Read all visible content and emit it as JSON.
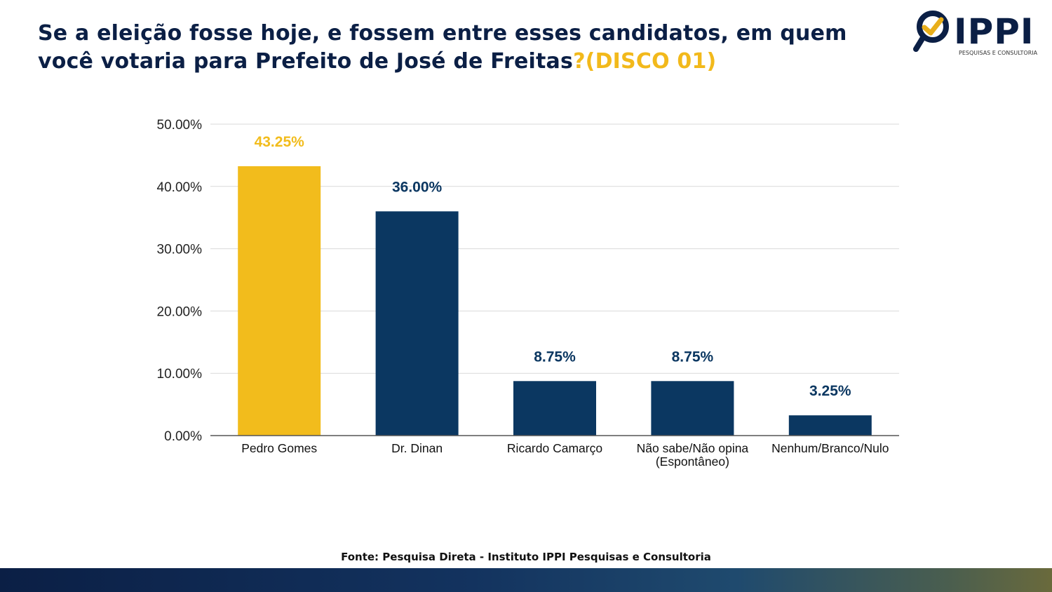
{
  "header": {
    "title_main": "Se a eleição fosse hoje, e fossem entre esses candidatos, em quem você votaria para Prefeito de José de Freitas",
    "title_accent": "?(DISCO 01)"
  },
  "logo": {
    "brand": "IPPI",
    "tagline": "PESQUISAS E CONSULTORIA",
    "icon": "magnifier-check-icon"
  },
  "footer": {
    "source": "Fonte: Pesquisa Direta - Instituto IPPI Pesquisas e Consultoria"
  },
  "colors": {
    "primary": "#0b3761",
    "accent": "#f2bc1c",
    "title": "#0b1f45"
  },
  "chart_data": {
    "type": "bar",
    "title": "Se a eleição fosse hoje, e fossem entre esses candidatos, em quem você votaria para Prefeito de José de Freitas?(DISCO 01)",
    "categories": [
      "Pedro Gomes",
      "Dr. Dinan",
      "Ricardo Camarço",
      "Não sabe/Não opina (Espontâneo)",
      "Nenhum/Branco/Nulo"
    ],
    "category_lines": [
      [
        "Pedro Gomes"
      ],
      [
        "Dr. Dinan"
      ],
      [
        "Ricardo Camarço"
      ],
      [
        "Não sabe/Não opina",
        "(Espontâneo)"
      ],
      [
        "Nenhum/Branco/Nulo"
      ]
    ],
    "values": [
      43.25,
      36.0,
      8.75,
      8.75,
      3.25
    ],
    "data_labels": [
      "43.25%",
      "36.00%",
      "8.75%",
      "8.75%",
      "3.25%"
    ],
    "bar_colors": [
      "#f2bc1c",
      "#0b3761",
      "#0b3761",
      "#0b3761",
      "#0b3761"
    ],
    "label_colors": [
      "#f2bc1c",
      "#0b3761",
      "#0b3761",
      "#0b3761",
      "#0b3761"
    ],
    "ylim": [
      0,
      50
    ],
    "yticks": [
      0,
      10,
      20,
      30,
      40,
      50
    ],
    "ytick_labels": [
      "0.00%",
      "10.00%",
      "20.00%",
      "30.00%",
      "40.00%",
      "50.00%"
    ],
    "xlabel": "",
    "ylabel": "",
    "grid": true,
    "legend": "none"
  }
}
